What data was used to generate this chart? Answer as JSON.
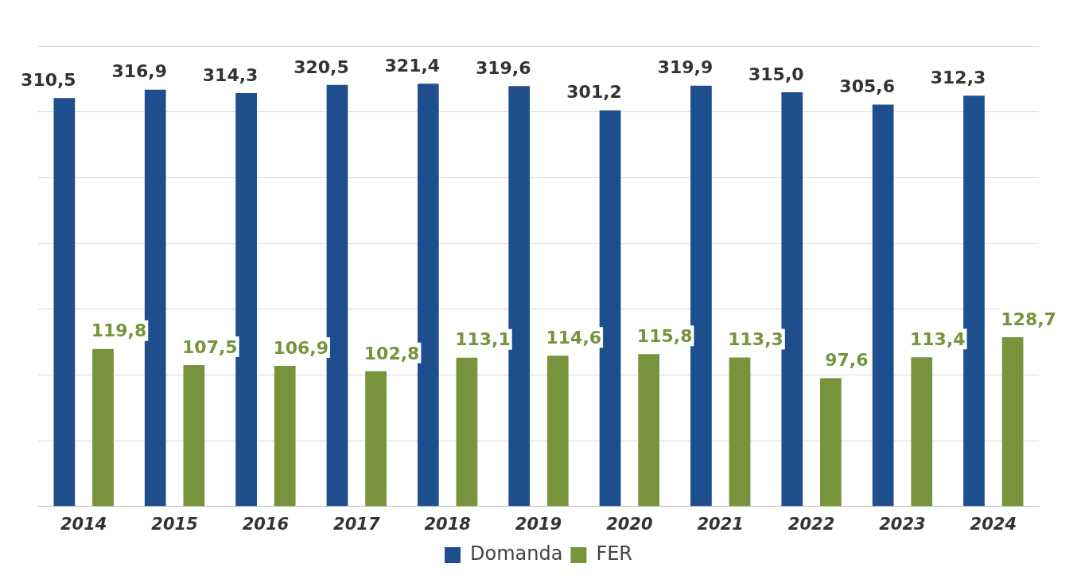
{
  "chart_data": {
    "type": "bar",
    "categories": [
      "2014",
      "2015",
      "2016",
      "2017",
      "2018",
      "2019",
      "2020",
      "2021",
      "2022",
      "2023",
      "2024"
    ],
    "series": [
      {
        "name": "Domanda",
        "color": "#1f4e8c",
        "values": [
          310.5,
          316.9,
          314.3,
          320.5,
          321.4,
          319.6,
          301.2,
          319.9,
          315.0,
          305.6,
          312.3
        ],
        "value_labels": [
          "310,5",
          "316,9",
          "314,3",
          "320,5",
          "321,4",
          "319,6",
          "301,2",
          "319,9",
          "315,0",
          "305,6",
          "312,3"
        ]
      },
      {
        "name": "FER",
        "color": "#77933c",
        "values": [
          119.8,
          107.5,
          106.9,
          102.8,
          113.1,
          114.6,
          115.8,
          113.3,
          97.6,
          113.4,
          128.7
        ],
        "value_labels": [
          "119,8",
          "107,5",
          "106,9",
          "102,8",
          "113,1",
          "114,6",
          "115,8",
          "113,3",
          "97,6",
          "113,4",
          "128,7"
        ]
      }
    ],
    "relative": false,
    "grid": "y",
    "legend": "bottom",
    "tick_labels": "x"
  }
}
